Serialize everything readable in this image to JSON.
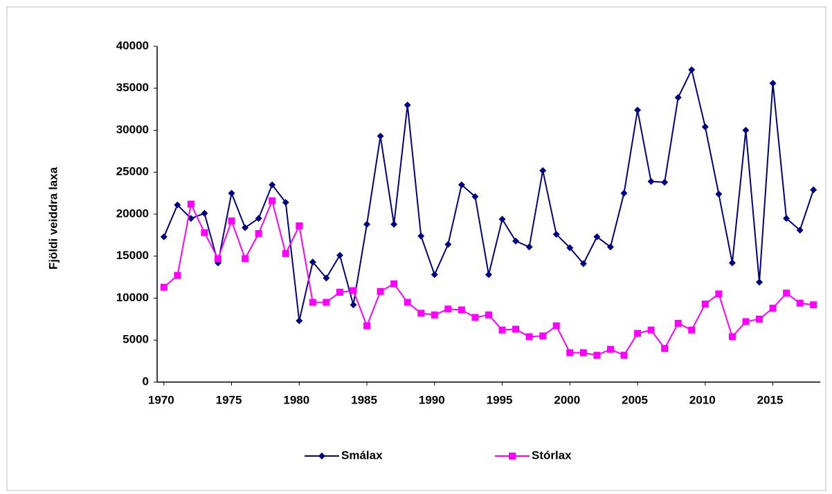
{
  "chart_data": {
    "type": "line",
    "y_label": "Fjöldi veiddra laxa",
    "x": [
      1970,
      1971,
      1972,
      1973,
      1974,
      1975,
      1976,
      1977,
      1978,
      1979,
      1980,
      1981,
      1982,
      1983,
      1984,
      1985,
      1986,
      1987,
      1988,
      1989,
      1990,
      1991,
      1992,
      1993,
      1994,
      1995,
      1996,
      1997,
      1998,
      1999,
      2000,
      2001,
      2002,
      2003,
      2004,
      2005,
      2006,
      2007,
      2008,
      2009,
      2010,
      2011,
      2012,
      2013,
      2014,
      2015,
      2016,
      2017,
      2018
    ],
    "series": [
      {
        "name": "Smálax",
        "color": "#000080",
        "marker": "diamond",
        "values": [
          17300,
          21100,
          19500,
          20100,
          14200,
          22500,
          18400,
          19500,
          23500,
          21400,
          7300,
          14300,
          12400,
          15100,
          9200,
          18800,
          29300,
          18800,
          33000,
          17400,
          12800,
          16400,
          23500,
          22100,
          12800,
          19400,
          16800,
          16100,
          25200,
          17600,
          16000,
          14100,
          17300,
          16100,
          22500,
          32400,
          23900,
          23800,
          33900,
          37200,
          30400,
          22400,
          14200,
          30000,
          11900,
          35600,
          19500,
          18100,
          22900
        ]
      },
      {
        "name": "Stórlax",
        "color": "#ff00ff",
        "marker": "square",
        "values": [
          11300,
          12700,
          21200,
          17800,
          14700,
          19200,
          14700,
          17700,
          21600,
          15300,
          18600,
          9500,
          9500,
          10700,
          10900,
          6700,
          10800,
          11700,
          9500,
          8200,
          8000,
          8700,
          8600,
          7700,
          8000,
          6200,
          6300,
          5400,
          5500,
          6700,
          3500,
          3500,
          3200,
          3900,
          3200,
          5800,
          6200,
          4000,
          7000,
          6200,
          9300,
          10500,
          5400,
          7200,
          7500,
          8800,
          10600,
          9400,
          9200
        ]
      }
    ],
    "xlim": [
      1969.5,
      2018.5
    ],
    "xticks": [
      1970,
      1975,
      1980,
      1985,
      1990,
      1995,
      2000,
      2005,
      2010,
      2015
    ],
    "ylim": [
      0,
      40000
    ],
    "yticks": [
      0,
      5000,
      10000,
      15000,
      20000,
      25000,
      30000,
      35000,
      40000
    ],
    "grid": false,
    "legend": "bottom"
  }
}
